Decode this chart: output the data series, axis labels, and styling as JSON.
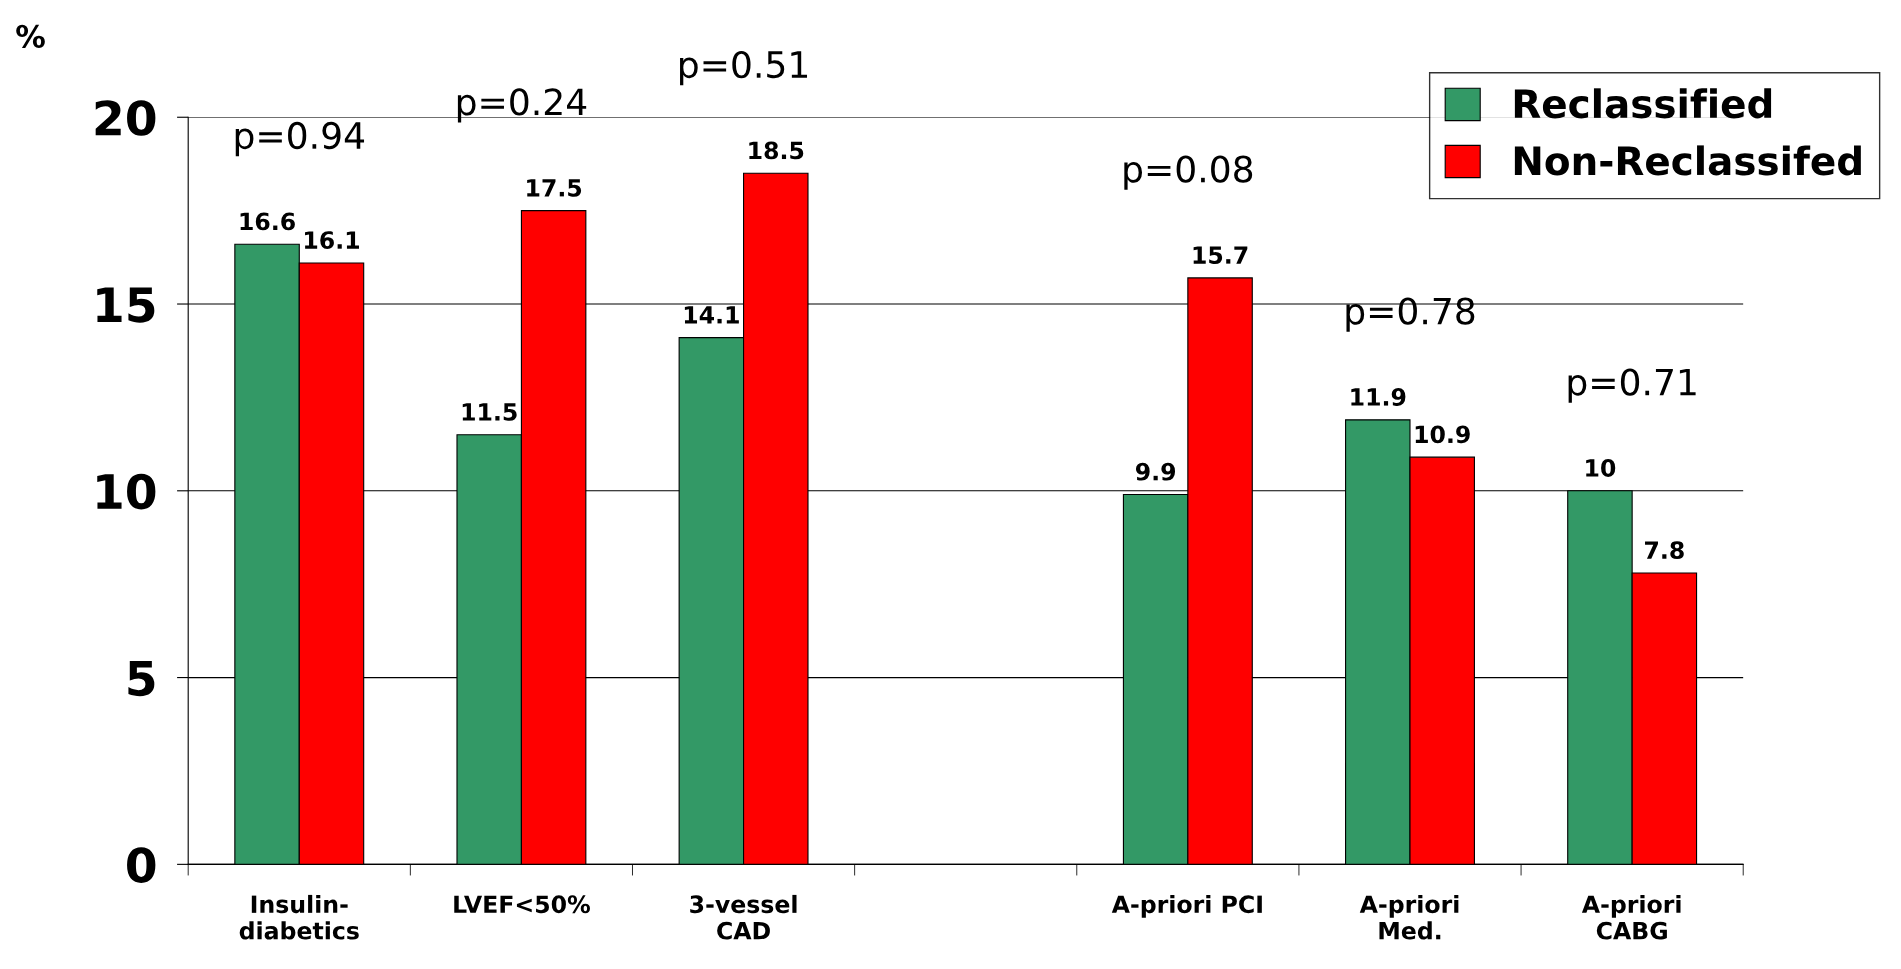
{
  "chart_data": {
    "type": "bar",
    "ylabel": "%",
    "categories": [
      "Insulin-\ndiabetics",
      "LVEF<50%",
      "3-vessel\nCAD",
      null,
      "A-priori PCI",
      "A-priori\nMed.",
      "A-priori\nCABG"
    ],
    "series": [
      {
        "name": "Reclassified",
        "color": "#339966",
        "values": [
          16.6,
          11.5,
          14.1,
          null,
          9.9,
          11.9,
          10
        ]
      },
      {
        "name": "Non-Reclassifed",
        "color": "#ff0000",
        "values": [
          16.1,
          17.5,
          18.5,
          null,
          15.7,
          10.9,
          7.8
        ]
      }
    ],
    "ylim": [
      0,
      20
    ],
    "yticks": [
      0,
      5,
      10,
      15,
      20
    ],
    "grid": "y",
    "legend": "top right",
    "data_labels": true,
    "annotations": [
      "p=0.94",
      "p=0.24",
      "p=0.51",
      "p=0.08",
      "p=0.78",
      "p=0.71"
    ]
  }
}
